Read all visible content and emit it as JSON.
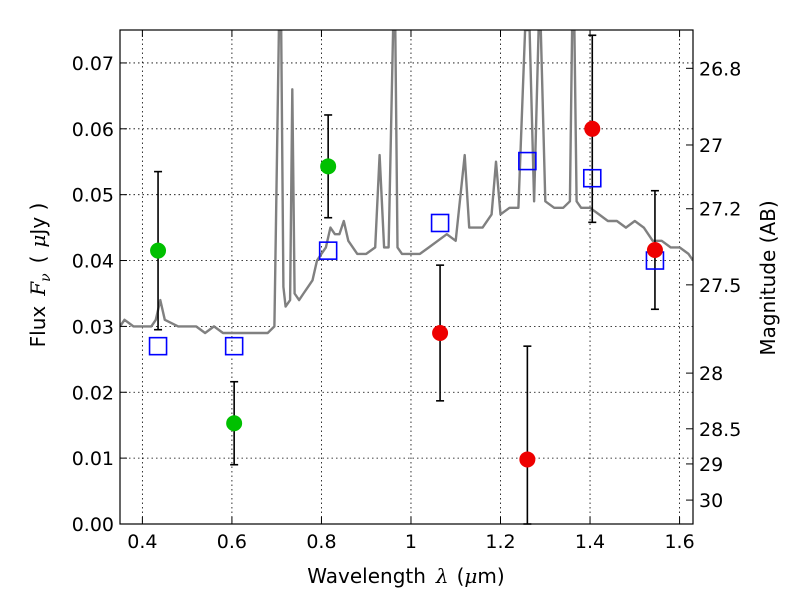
{
  "chart_data": {
    "type": "scatter",
    "xlabel": "Wavelength",
    "xlabel_symbol": "λ",
    "xlabel_unit_open": "(",
    "xlabel_unit_mu": "μ",
    "xlabel_unit_rest": "m)",
    "ylabel": "Flux",
    "ylabel_symbol": "F",
    "ylabel_subscript": "ν",
    "ylabel_unit_open": "(",
    "ylabel_unit_mu": "μ",
    "ylabel_unit_rest": "Jy )",
    "y2label": "Magnitude (AB)",
    "xlim": [
      0.35,
      1.63
    ],
    "ylim": [
      0.0,
      0.075
    ],
    "grid": true,
    "x_ticks": [
      0.4,
      0.6,
      0.8,
      1.0,
      1.2,
      1.4,
      1.6
    ],
    "x_tick_labels": [
      "0.4",
      "0.6",
      "0.8",
      "1",
      "1.2",
      "1.4",
      "1.6"
    ],
    "y_ticks": [
      0.0,
      0.01,
      0.02,
      0.03,
      0.04,
      0.05,
      0.06,
      0.07
    ],
    "y_tick_labels": [
      "0.00",
      "0.01",
      "0.02",
      "0.03",
      "0.04",
      "0.05",
      "0.06",
      "0.07"
    ],
    "y2_ticks": [
      26.8,
      27,
      27.2,
      27.5,
      28,
      28.5,
      29,
      30
    ],
    "y2_tick_labels": [
      "26.8",
      "27",
      "27.2",
      "27.5",
      "28",
      "28.5",
      "29",
      "30"
    ],
    "series": [
      {
        "name": "model-spectrum",
        "kind": "line",
        "color": "#808080",
        "points": [
          [
            0.35,
            0.03
          ],
          [
            0.36,
            0.031
          ],
          [
            0.38,
            0.03
          ],
          [
            0.4,
            0.03
          ],
          [
            0.42,
            0.03
          ],
          [
            0.43,
            0.031
          ],
          [
            0.44,
            0.034
          ],
          [
            0.45,
            0.031
          ],
          [
            0.48,
            0.03
          ],
          [
            0.5,
            0.03
          ],
          [
            0.52,
            0.03
          ],
          [
            0.54,
            0.029
          ],
          [
            0.56,
            0.03
          ],
          [
            0.58,
            0.029
          ],
          [
            0.6,
            0.029
          ],
          [
            0.62,
            0.029
          ],
          [
            0.64,
            0.029
          ],
          [
            0.66,
            0.029
          ],
          [
            0.68,
            0.029
          ],
          [
            0.695,
            0.03
          ],
          [
            0.705,
            0.075
          ],
          [
            0.71,
            0.075
          ],
          [
            0.715,
            0.036
          ],
          [
            0.72,
            0.033
          ],
          [
            0.73,
            0.034
          ],
          [
            0.735,
            0.066
          ],
          [
            0.74,
            0.035
          ],
          [
            0.75,
            0.034
          ],
          [
            0.76,
            0.035
          ],
          [
            0.77,
            0.036
          ],
          [
            0.78,
            0.037
          ],
          [
            0.79,
            0.04
          ],
          [
            0.8,
            0.041
          ],
          [
            0.81,
            0.042
          ],
          [
            0.82,
            0.045
          ],
          [
            0.83,
            0.044
          ],
          [
            0.84,
            0.044
          ],
          [
            0.85,
            0.046
          ],
          [
            0.86,
            0.043
          ],
          [
            0.88,
            0.041
          ],
          [
            0.9,
            0.041
          ],
          [
            0.92,
            0.042
          ],
          [
            0.93,
            0.056
          ],
          [
            0.94,
            0.042
          ],
          [
            0.95,
            0.042
          ],
          [
            0.96,
            0.075
          ],
          [
            0.965,
            0.075
          ],
          [
            0.97,
            0.042
          ],
          [
            0.98,
            0.041
          ],
          [
            1.0,
            0.041
          ],
          [
            1.02,
            0.041
          ],
          [
            1.04,
            0.042
          ],
          [
            1.06,
            0.043
          ],
          [
            1.08,
            0.044
          ],
          [
            1.1,
            0.043
          ],
          [
            1.12,
            0.056
          ],
          [
            1.13,
            0.045
          ],
          [
            1.14,
            0.045
          ],
          [
            1.16,
            0.045
          ],
          [
            1.18,
            0.047
          ],
          [
            1.19,
            0.055
          ],
          [
            1.2,
            0.047
          ],
          [
            1.22,
            0.048
          ],
          [
            1.24,
            0.048
          ],
          [
            1.255,
            0.075
          ],
          [
            1.265,
            0.075
          ],
          [
            1.275,
            0.049
          ],
          [
            1.285,
            0.075
          ],
          [
            1.29,
            0.075
          ],
          [
            1.3,
            0.049
          ],
          [
            1.32,
            0.048
          ],
          [
            1.34,
            0.048
          ],
          [
            1.355,
            0.049
          ],
          [
            1.36,
            0.075
          ],
          [
            1.365,
            0.075
          ],
          [
            1.37,
            0.049
          ],
          [
            1.38,
            0.048
          ],
          [
            1.4,
            0.048
          ],
          [
            1.42,
            0.047
          ],
          [
            1.44,
            0.046
          ],
          [
            1.46,
            0.046
          ],
          [
            1.48,
            0.045
          ],
          [
            1.5,
            0.046
          ],
          [
            1.52,
            0.045
          ],
          [
            1.54,
            0.043
          ],
          [
            1.56,
            0.043
          ],
          [
            1.58,
            0.042
          ],
          [
            1.6,
            0.042
          ],
          [
            1.62,
            0.041
          ],
          [
            1.63,
            0.04
          ]
        ]
      },
      {
        "name": "model-photometry",
        "kind": "open-square",
        "color": "#0000ff",
        "x": [
          0.435,
          0.605,
          0.815,
          1.065,
          1.26,
          1.405,
          1.545
        ],
        "y": [
          0.027,
          0.027,
          0.0415,
          0.0457,
          0.0551,
          0.0525,
          0.04
        ]
      },
      {
        "name": "observed-green",
        "kind": "filled-circle",
        "color": "#00c000",
        "x": [
          0.435,
          0.605,
          0.815
        ],
        "y": [
          0.0415,
          0.0153,
          0.0543
        ],
        "yerr": [
          0.012,
          0.0063,
          0.0078
        ]
      },
      {
        "name": "observed-red",
        "kind": "filled-circle",
        "color": "#ee0000",
        "x": [
          1.065,
          1.26,
          1.405,
          1.545
        ],
        "y": [
          0.029,
          0.0098,
          0.06,
          0.0416
        ],
        "yerr": [
          0.0103,
          0.0172,
          0.0142,
          0.009
        ]
      }
    ]
  }
}
